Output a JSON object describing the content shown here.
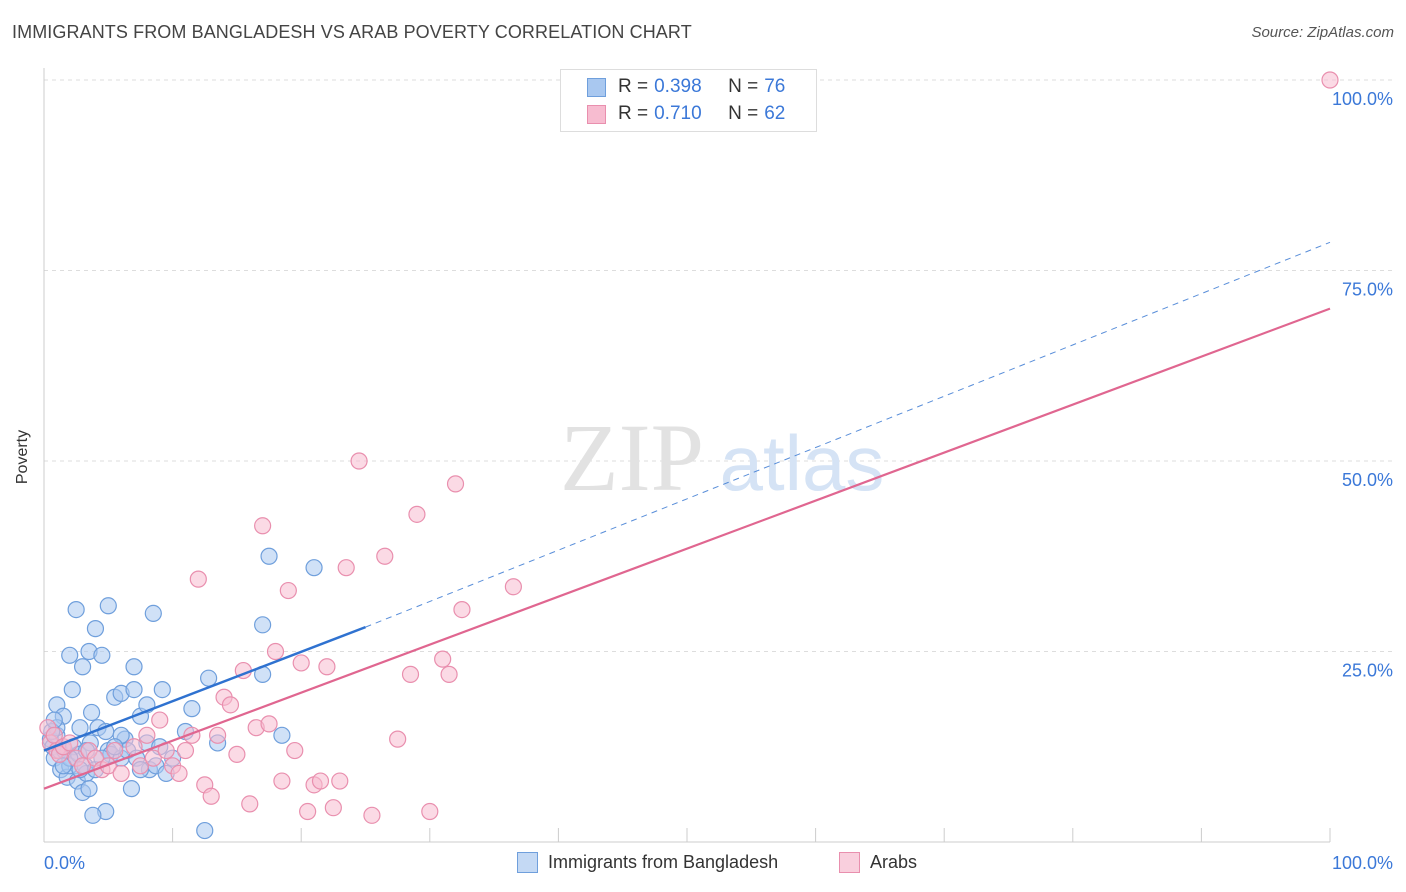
{
  "title": "IMMIGRANTS FROM BANGLADESH VS ARAB POVERTY CORRELATION CHART",
  "source": "Source: ZipAtlas.com",
  "watermark": {
    "zip": "ZIP",
    "atlas": "atlas"
  },
  "colors": {
    "blue_fill": "#a9c8f0",
    "blue_stroke": "#6f9fdc",
    "blue_line": "#2f72d0",
    "pink_fill": "#f7bcd0",
    "pink_stroke": "#e98fae",
    "pink_line": "#e06690",
    "axis_text": "#3b78d8",
    "grid": "#dddddd"
  },
  "legend_top": [
    {
      "r_label": "R =",
      "r_value": "0.398",
      "n_label": "N =",
      "n_value": "76"
    },
    {
      "r_label": "R =",
      "r_value": "0.710",
      "n_label": "N =",
      "n_value": "62"
    }
  ],
  "legend_bottom": [
    "Immigrants from Bangladesh",
    "Arabs"
  ],
  "chart_data": {
    "type": "scatter",
    "title": "IMMIGRANTS FROM BANGLADESH VS ARAB POVERTY CORRELATION CHART",
    "xlabel": "",
    "ylabel": "Poverty",
    "xlim": [
      0,
      100
    ],
    "ylim": [
      0,
      100
    ],
    "x_tick_labels": [
      "0.0%",
      "100.0%"
    ],
    "y_tick_labels": [
      "100.0%",
      "75.0%",
      "50.0%",
      "25.0%"
    ],
    "y_ticks": [
      100,
      75,
      50,
      25
    ],
    "series": [
      {
        "name": "Immigrants from Bangladesh",
        "r": 0.398,
        "n": 76,
        "trend": {
          "x0": 0,
          "y0": 12.0,
          "x1": 25,
          "y1": 28.2,
          "dashed_to_x": 100,
          "dashed_to_y": 78.7
        },
        "points": [
          [
            0.5,
            13.5
          ],
          [
            0.7,
            12.5
          ],
          [
            0.8,
            11
          ],
          [
            1,
            14
          ],
          [
            1,
            18
          ],
          [
            1.2,
            12
          ],
          [
            1.3,
            9.5
          ],
          [
            1.5,
            16.5
          ],
          [
            1.6,
            12
          ],
          [
            1.8,
            8.5
          ],
          [
            2,
            10
          ],
          [
            2,
            24.5
          ],
          [
            2.2,
            20
          ],
          [
            2.3,
            12.5
          ],
          [
            2.5,
            30.5
          ],
          [
            2.6,
            8
          ],
          [
            2.7,
            11.5
          ],
          [
            2.8,
            15
          ],
          [
            3,
            6.5
          ],
          [
            3,
            23
          ],
          [
            3.2,
            10
          ],
          [
            3.3,
            9
          ],
          [
            3.5,
            7
          ],
          [
            3.5,
            25
          ],
          [
            3.6,
            13
          ],
          [
            3.7,
            17
          ],
          [
            4,
            28
          ],
          [
            4,
            9.5
          ],
          [
            4.2,
            15
          ],
          [
            4.5,
            24.5
          ],
          [
            4.8,
            14.5
          ],
          [
            4.8,
            4
          ],
          [
            5,
            31
          ],
          [
            5,
            12
          ],
          [
            5.2,
            11.5
          ],
          [
            5.5,
            19
          ],
          [
            6,
            19.5
          ],
          [
            6,
            11
          ],
          [
            6.3,
            13.5
          ],
          [
            6.5,
            12
          ],
          [
            6.8,
            7
          ],
          [
            7,
            23
          ],
          [
            7,
            20
          ],
          [
            7.2,
            11
          ],
          [
            7.5,
            16.5
          ],
          [
            8,
            18
          ],
          [
            8,
            13
          ],
          [
            8.2,
            9.5
          ],
          [
            8.5,
            30
          ],
          [
            8.7,
            10
          ],
          [
            9,
            12.5
          ],
          [
            9.2,
            20
          ],
          [
            9.5,
            9
          ],
          [
            10,
            11
          ],
          [
            11,
            14.5
          ],
          [
            11.5,
            17.5
          ],
          [
            12.5,
            1.5
          ],
          [
            12.8,
            21.5
          ],
          [
            13.5,
            13
          ],
          [
            17,
            22
          ],
          [
            17,
            28.5
          ],
          [
            17.5,
            37.5
          ],
          [
            18.5,
            14
          ],
          [
            21,
            36
          ],
          [
            1,
            15
          ],
          [
            2,
            11
          ],
          [
            3.3,
            12
          ],
          [
            4.5,
            11
          ],
          [
            1.5,
            10
          ],
          [
            0.6,
            14.5
          ],
          [
            6,
            14
          ],
          [
            0.8,
            16
          ],
          [
            2.8,
            9.5
          ],
          [
            3.8,
            3.5
          ],
          [
            5.5,
            12.5
          ],
          [
            7.5,
            9.5
          ]
        ]
      },
      {
        "name": "Arabs",
        "r": 0.71,
        "n": 62,
        "trend": {
          "x0": 0,
          "y0": 7.0,
          "x1": 100,
          "y1": 70.0
        },
        "points": [
          [
            0.3,
            15
          ],
          [
            0.5,
            13
          ],
          [
            0.8,
            14
          ],
          [
            1,
            12
          ],
          [
            1.2,
            11.5
          ],
          [
            1.5,
            12.5
          ],
          [
            2,
            13
          ],
          [
            2.5,
            11
          ],
          [
            3,
            10
          ],
          [
            3.5,
            12
          ],
          [
            4,
            11
          ],
          [
            4.5,
            9.5
          ],
          [
            5,
            10
          ],
          [
            5.5,
            12
          ],
          [
            6,
            9
          ],
          [
            7,
            12.5
          ],
          [
            7.5,
            10
          ],
          [
            8,
            14
          ],
          [
            8.5,
            11
          ],
          [
            9,
            16
          ],
          [
            9.5,
            12
          ],
          [
            10,
            10
          ],
          [
            10.5,
            9
          ],
          [
            11,
            12
          ],
          [
            11.5,
            14
          ],
          [
            12,
            34.5
          ],
          [
            12.5,
            7.5
          ],
          [
            13,
            6
          ],
          [
            13.5,
            14
          ],
          [
            14,
            19
          ],
          [
            14.5,
            18
          ],
          [
            15,
            11.5
          ],
          [
            15.5,
            22.5
          ],
          [
            16,
            5
          ],
          [
            16.5,
            15
          ],
          [
            17,
            41.5
          ],
          [
            17.5,
            15.5
          ],
          [
            18,
            25
          ],
          [
            18.5,
            8
          ],
          [
            19,
            33
          ],
          [
            19.5,
            12
          ],
          [
            20,
            23.5
          ],
          [
            20.5,
            4
          ],
          [
            21,
            7.5
          ],
          [
            21.5,
            8
          ],
          [
            22,
            23
          ],
          [
            22.5,
            4.5
          ],
          [
            23,
            8
          ],
          [
            23.5,
            36
          ],
          [
            24.5,
            50
          ],
          [
            25.5,
            3.5
          ],
          [
            26.5,
            37.5
          ],
          [
            27.5,
            13.5
          ],
          [
            28.5,
            22
          ],
          [
            29,
            43
          ],
          [
            30,
            4
          ],
          [
            31,
            24
          ],
          [
            31.5,
            22
          ],
          [
            32,
            47
          ],
          [
            32.5,
            30.5
          ],
          [
            36.5,
            33.5
          ],
          [
            100,
            100
          ]
        ]
      }
    ]
  }
}
